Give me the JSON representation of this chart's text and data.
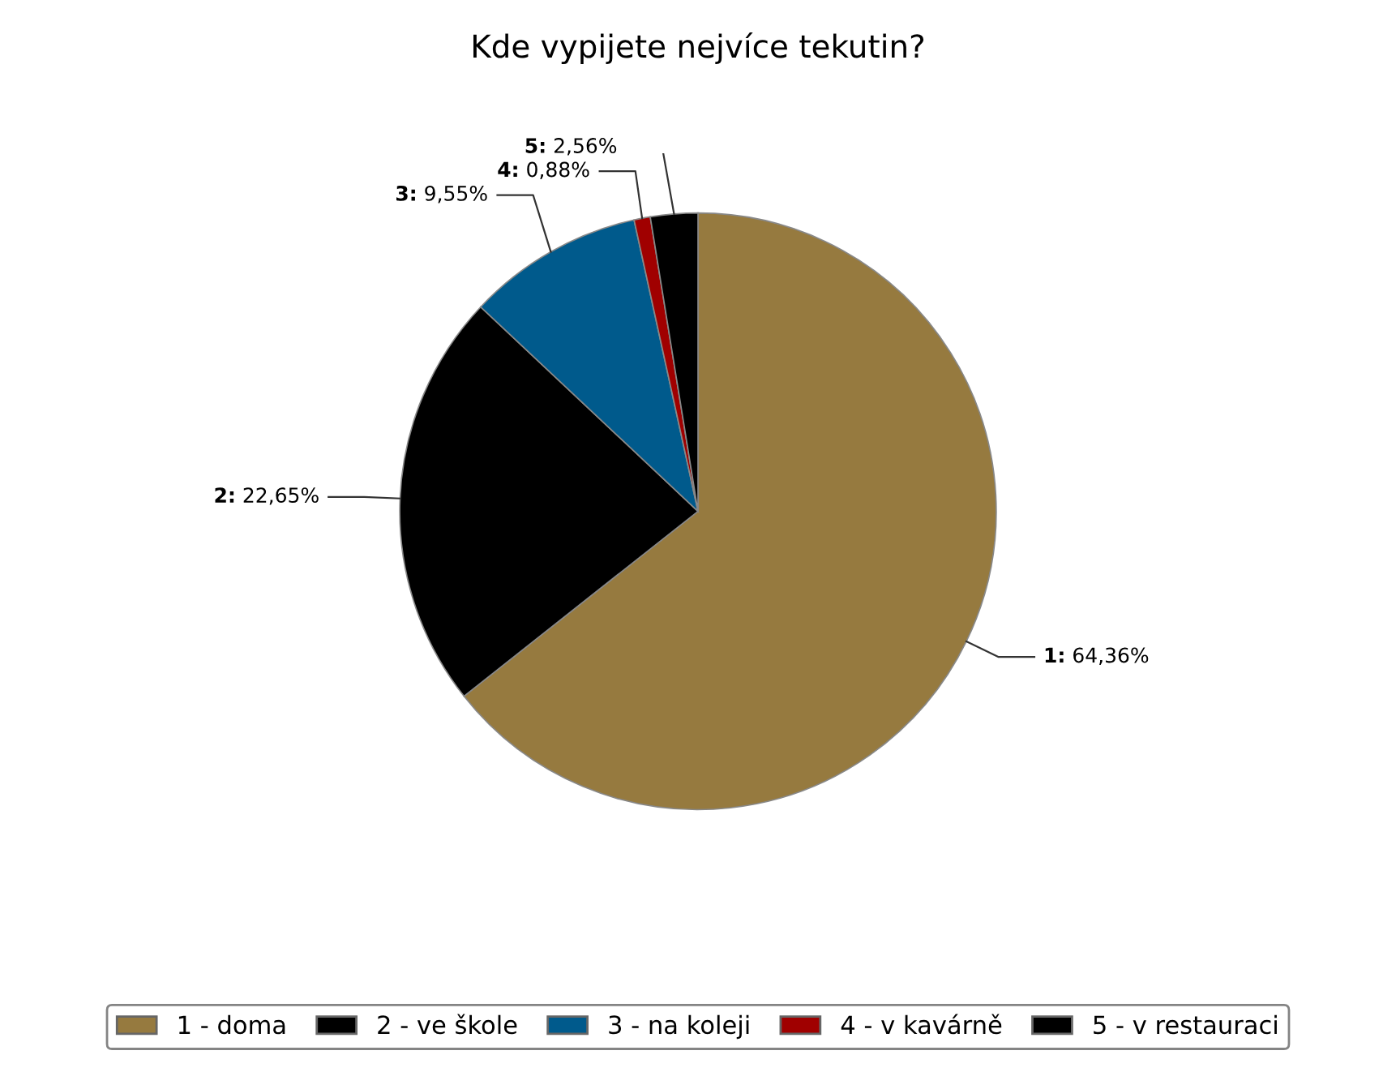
{
  "chart_data": {
    "type": "pie",
    "title": "Kde vypijete nejvíce tekutin?",
    "categories": [
      "1 - doma",
      "2 - ve škole",
      "3 - na koleji",
      "4 - v kavárně",
      "5 - v restauraci"
    ],
    "values": [
      64.36,
      22.65,
      9.55,
      0.88,
      2.56
    ],
    "value_labels": [
      "1: 64,36%",
      "2: 22,65%",
      "3: 9,55%",
      "4: 0,88%",
      "5: 2,56%"
    ],
    "colors": [
      "#967a3f",
      "#000000",
      "#005a8c",
      "#a00000",
      "#000000"
    ],
    "legend": "bottom"
  }
}
